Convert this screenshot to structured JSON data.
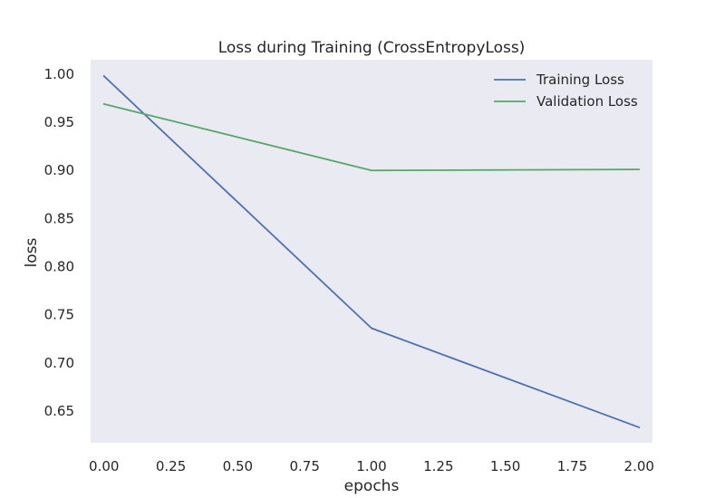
{
  "chart_data": {
    "type": "line",
    "title": "Loss during Training (CrossEntropyLoss)",
    "xlabel": "epochs",
    "ylabel": "loss",
    "xlim": [
      -0.05,
      2.05
    ],
    "ylim": [
      0.617,
      1.015
    ],
    "xticks": [
      0.0,
      0.25,
      0.5,
      0.75,
      1.0,
      1.25,
      1.5,
      1.75,
      2.0
    ],
    "xtick_labels": [
      "0.00",
      "0.25",
      "0.50",
      "0.75",
      "1.00",
      "1.25",
      "1.50",
      "1.75",
      "2.00"
    ],
    "yticks": [
      0.65,
      0.7,
      0.75,
      0.8,
      0.85,
      0.9,
      0.95,
      1.0
    ],
    "ytick_labels": [
      "0.65",
      "0.70",
      "0.75",
      "0.80",
      "0.85",
      "0.90",
      "0.95",
      "1.00"
    ],
    "grid": false,
    "legend_position": "top-right",
    "x": [
      0,
      1,
      2
    ],
    "series": [
      {
        "name": "Training Loss",
        "values": [
          0.998,
          0.736,
          0.633
        ],
        "color": "#4c72b0"
      },
      {
        "name": "Validation Loss",
        "values": [
          0.969,
          0.9,
          0.901
        ],
        "color": "#55a868"
      }
    ]
  }
}
